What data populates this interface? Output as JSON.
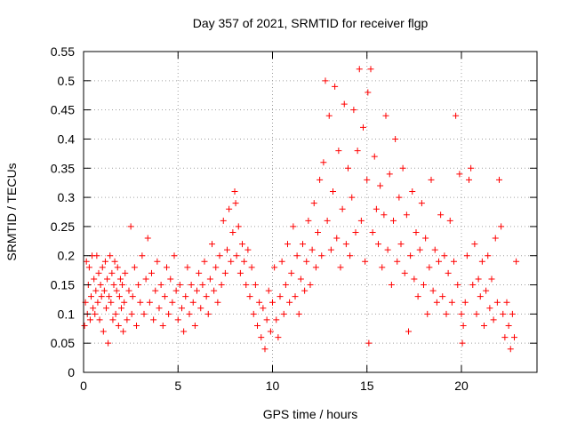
{
  "chart_data": {
    "type": "scatter",
    "title": "Day 357 of 2021, SRMTID for receiver flgp",
    "xlabel": "GPS time / hours",
    "ylabel": "SRMTID / TECUs",
    "xlim": [
      0,
      24
    ],
    "ylim": [
      0,
      0.55
    ],
    "xticks": [
      "0",
      "5",
      "10",
      "15",
      "20"
    ],
    "yticks": [
      "0",
      "0.05",
      "0.1",
      "0.15",
      "0.2",
      "0.25",
      "0.3",
      "0.35",
      "0.4",
      "0.45",
      "0.5",
      "0.55"
    ],
    "grid": true,
    "marker": "+",
    "series": [
      {
        "color": "#ff0000",
        "points": [
          [
            0.05,
            0.08
          ],
          [
            0.1,
            0.12
          ],
          [
            0.15,
            0.19
          ],
          [
            0.2,
            0.1
          ],
          [
            0.25,
            0.15
          ],
          [
            0.3,
            0.18
          ],
          [
            0.35,
            0.09
          ],
          [
            0.4,
            0.13
          ],
          [
            0.45,
            0.2
          ],
          [
            0.5,
            0.11
          ],
          [
            0.55,
            0.16
          ],
          [
            0.6,
            0.1
          ],
          [
            0.65,
            0.14
          ],
          [
            0.7,
            0.2
          ],
          [
            0.75,
            0.12
          ],
          [
            0.8,
            0.17
          ],
          [
            0.85,
            0.09
          ],
          [
            0.9,
            0.15
          ],
          [
            0.95,
            0.13
          ],
          [
            1.0,
            0.18
          ],
          [
            1.05,
            0.07
          ],
          [
            1.1,
            0.14
          ],
          [
            1.15,
            0.19
          ],
          [
            1.2,
            0.11
          ],
          [
            1.25,
            0.16
          ],
          [
            1.3,
            0.05
          ],
          [
            1.35,
            0.13
          ],
          [
            1.4,
            0.2
          ],
          [
            1.45,
            0.12
          ],
          [
            1.5,
            0.17
          ],
          [
            1.55,
            0.09
          ],
          [
            1.6,
            0.15
          ],
          [
            1.65,
            0.19
          ],
          [
            1.7,
            0.1
          ],
          [
            1.75,
            0.14
          ],
          [
            1.8,
            0.18
          ],
          [
            1.85,
            0.08
          ],
          [
            1.9,
            0.13
          ],
          [
            1.95,
            0.16
          ],
          [
            2.0,
            0.11
          ],
          [
            2.05,
            0.15
          ],
          [
            2.1,
            0.07
          ],
          [
            2.15,
            0.12
          ],
          [
            2.2,
            0.17
          ],
          [
            2.3,
            0.09
          ],
          [
            2.4,
            0.14
          ],
          [
            2.5,
            0.25
          ],
          [
            2.55,
            0.1
          ],
          [
            2.6,
            0.13
          ],
          [
            2.7,
            0.18
          ],
          [
            2.8,
            0.08
          ],
          [
            2.9,
            0.15
          ],
          [
            3.0,
            0.12
          ],
          [
            3.1,
            0.2
          ],
          [
            3.2,
            0.1
          ],
          [
            3.3,
            0.16
          ],
          [
            3.4,
            0.23
          ],
          [
            3.5,
            0.12
          ],
          [
            3.6,
            0.17
          ],
          [
            3.7,
            0.09
          ],
          [
            3.8,
            0.14
          ],
          [
            3.9,
            0.19
          ],
          [
            4.0,
            0.11
          ],
          [
            4.1,
            0.15
          ],
          [
            4.2,
            0.08
          ],
          [
            4.3,
            0.13
          ],
          [
            4.4,
            0.18
          ],
          [
            4.5,
            0.1
          ],
          [
            4.6,
            0.16
          ],
          [
            4.7,
            0.12
          ],
          [
            4.8,
            0.2
          ],
          [
            4.9,
            0.14
          ],
          [
            5.0,
            0.09
          ],
          [
            5.1,
            0.15
          ],
          [
            5.2,
            0.11
          ],
          [
            5.3,
            0.07
          ],
          [
            5.4,
            0.13
          ],
          [
            5.5,
            0.18
          ],
          [
            5.6,
            0.1
          ],
          [
            5.7,
            0.15
          ],
          [
            5.8,
            0.12
          ],
          [
            5.9,
            0.08
          ],
          [
            6.0,
            0.14
          ],
          [
            6.1,
            0.17
          ],
          [
            6.2,
            0.11
          ],
          [
            6.3,
            0.15
          ],
          [
            6.4,
            0.19
          ],
          [
            6.5,
            0.13
          ],
          [
            6.6,
            0.1
          ],
          [
            6.7,
            0.16
          ],
          [
            6.8,
            0.22
          ],
          [
            6.9,
            0.14
          ],
          [
            7.0,
            0.18
          ],
          [
            7.1,
            0.12
          ],
          [
            7.2,
            0.2
          ],
          [
            7.3,
            0.15
          ],
          [
            7.4,
            0.26
          ],
          [
            7.5,
            0.17
          ],
          [
            7.6,
            0.21
          ],
          [
            7.7,
            0.28
          ],
          [
            7.8,
            0.19
          ],
          [
            7.9,
            0.24
          ],
          [
            8.0,
            0.31
          ],
          [
            8.05,
            0.29
          ],
          [
            8.1,
            0.2
          ],
          [
            8.2,
            0.25
          ],
          [
            8.3,
            0.17
          ],
          [
            8.4,
            0.22
          ],
          [
            8.5,
            0.19
          ],
          [
            8.6,
            0.15
          ],
          [
            8.7,
            0.21
          ],
          [
            8.8,
            0.13
          ],
          [
            8.9,
            0.18
          ],
          [
            9.0,
            0.1
          ],
          [
            9.1,
            0.15
          ],
          [
            9.2,
            0.08
          ],
          [
            9.3,
            0.12
          ],
          [
            9.4,
            0.06
          ],
          [
            9.5,
            0.11
          ],
          [
            9.6,
            0.04
          ],
          [
            9.7,
            0.09
          ],
          [
            9.8,
            0.14
          ],
          [
            9.9,
            0.07
          ],
          [
            10.0,
            0.12
          ],
          [
            10.1,
            0.18
          ],
          [
            10.2,
            0.09
          ],
          [
            10.3,
            0.06
          ],
          [
            10.4,
            0.13
          ],
          [
            10.5,
            0.19
          ],
          [
            10.6,
            0.1
          ],
          [
            10.7,
            0.15
          ],
          [
            10.8,
            0.22
          ],
          [
            10.9,
            0.12
          ],
          [
            11.0,
            0.17
          ],
          [
            11.1,
            0.25
          ],
          [
            11.2,
            0.13
          ],
          [
            11.3,
            0.2
          ],
          [
            11.4,
            0.1
          ],
          [
            11.5,
            0.16
          ],
          [
            11.6,
            0.22
          ],
          [
            11.7,
            0.14
          ],
          [
            11.8,
            0.19
          ],
          [
            11.9,
            0.26
          ],
          [
            12.0,
            0.15
          ],
          [
            12.1,
            0.21
          ],
          [
            12.2,
            0.29
          ],
          [
            12.3,
            0.18
          ],
          [
            12.4,
            0.24
          ],
          [
            12.5,
            0.33
          ],
          [
            12.6,
            0.2
          ],
          [
            12.7,
            0.36
          ],
          [
            12.8,
            0.5
          ],
          [
            12.9,
            0.26
          ],
          [
            13.0,
            0.44
          ],
          [
            13.1,
            0.21
          ],
          [
            13.2,
            0.31
          ],
          [
            13.3,
            0.49
          ],
          [
            13.4,
            0.23
          ],
          [
            13.5,
            0.38
          ],
          [
            13.6,
            0.18
          ],
          [
            13.7,
            0.28
          ],
          [
            13.8,
            0.46
          ],
          [
            13.9,
            0.22
          ],
          [
            14.0,
            0.35
          ],
          [
            14.1,
            0.2
          ],
          [
            14.2,
            0.3
          ],
          [
            14.3,
            0.45
          ],
          [
            14.4,
            0.24
          ],
          [
            14.5,
            0.38
          ],
          [
            14.6,
            0.52
          ],
          [
            14.7,
            0.26
          ],
          [
            14.8,
            0.42
          ],
          [
            14.9,
            0.19
          ],
          [
            15.0,
            0.33
          ],
          [
            15.05,
            0.48
          ],
          [
            15.1,
            0.05
          ],
          [
            15.2,
            0.52
          ],
          [
            15.3,
            0.24
          ],
          [
            15.4,
            0.37
          ],
          [
            15.5,
            0.28
          ],
          [
            15.6,
            0.22
          ],
          [
            15.7,
            0.32
          ],
          [
            15.8,
            0.18
          ],
          [
            15.9,
            0.27
          ],
          [
            16.0,
            0.44
          ],
          [
            16.1,
            0.21
          ],
          [
            16.2,
            0.34
          ],
          [
            16.3,
            0.15
          ],
          [
            16.4,
            0.26
          ],
          [
            16.5,
            0.4
          ],
          [
            16.6,
            0.19
          ],
          [
            16.7,
            0.3
          ],
          [
            16.8,
            0.22
          ],
          [
            16.9,
            0.35
          ],
          [
            17.0,
            0.17
          ],
          [
            17.1,
            0.27
          ],
          [
            17.2,
            0.07
          ],
          [
            17.3,
            0.2
          ],
          [
            17.4,
            0.31
          ],
          [
            17.5,
            0.16
          ],
          [
            17.6,
            0.24
          ],
          [
            17.7,
            0.13
          ],
          [
            17.8,
            0.21
          ],
          [
            17.9,
            0.29
          ],
          [
            18.0,
            0.15
          ],
          [
            18.1,
            0.23
          ],
          [
            18.2,
            0.1
          ],
          [
            18.3,
            0.18
          ],
          [
            18.4,
            0.33
          ],
          [
            18.5,
            0.14
          ],
          [
            18.6,
            0.21
          ],
          [
            18.7,
            0.12
          ],
          [
            18.8,
            0.19
          ],
          [
            18.9,
            0.27
          ],
          [
            19.0,
            0.13
          ],
          [
            19.1,
            0.2
          ],
          [
            19.2,
            0.1
          ],
          [
            19.3,
            0.17
          ],
          [
            19.4,
            0.26
          ],
          [
            19.5,
            0.12
          ],
          [
            19.6,
            0.19
          ],
          [
            19.7,
            0.44
          ],
          [
            19.8,
            0.15
          ],
          [
            19.9,
            0.34
          ],
          [
            20.0,
            0.1
          ],
          [
            20.05,
            0.05
          ],
          [
            20.1,
            0.08
          ],
          [
            20.2,
            0.12
          ],
          [
            20.3,
            0.2
          ],
          [
            20.4,
            0.33
          ],
          [
            20.5,
            0.35
          ],
          [
            20.6,
            0.15
          ],
          [
            20.7,
            0.22
          ],
          [
            20.8,
            0.1
          ],
          [
            20.9,
            0.16
          ],
          [
            21.0,
            0.13
          ],
          [
            21.1,
            0.19
          ],
          [
            21.2,
            0.08
          ],
          [
            21.3,
            0.14
          ],
          [
            21.4,
            0.2
          ],
          [
            21.5,
            0.11
          ],
          [
            21.6,
            0.16
          ],
          [
            21.7,
            0.09
          ],
          [
            21.8,
            0.23
          ],
          [
            21.9,
            0.12
          ],
          [
            22.0,
            0.33
          ],
          [
            22.1,
            0.25
          ],
          [
            22.2,
            0.1
          ],
          [
            22.3,
            0.06
          ],
          [
            22.4,
            0.12
          ],
          [
            22.5,
            0.08
          ],
          [
            22.6,
            0.04
          ],
          [
            22.7,
            0.1
          ],
          [
            22.8,
            0.06
          ],
          [
            22.9,
            0.19
          ]
        ]
      }
    ]
  }
}
